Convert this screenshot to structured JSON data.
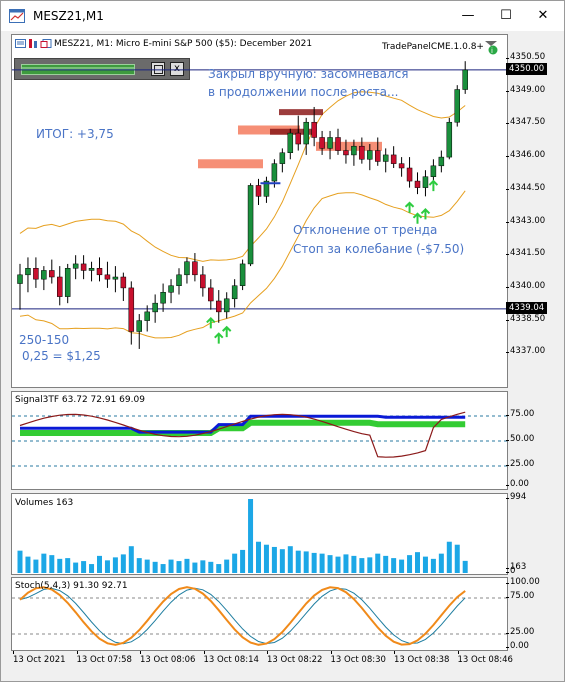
{
  "window": {
    "title": "MESZ21,M1",
    "controls": [
      "minimize-icon",
      "maximize-icon",
      "close-icon"
    ]
  },
  "chart": {
    "header": "MESZ21, M1:  Micro E-mini S&P 500 ($5): December 2021",
    "ea_label": "TradePanelCME.1.0.8+",
    "panel_close": "x",
    "price_scale": [
      "4350.50",
      "4349.00",
      "4347.50",
      "4346.00",
      "4344.50",
      "4343.00",
      "4341.50",
      "4340.00",
      "4338.50",
      "4337.00"
    ],
    "current_price_tag": "4350.00",
    "hline_price_tag": "4339.04",
    "annotations": {
      "closed_note_1": "Закрыл вручную: засомневался",
      "closed_note_2": "в продолжении после роста...",
      "result": "ИТОГ: +3,75",
      "deviation_1": "Отклонение от тренда",
      "deviation_2": "Стоп за колебание (-$7.50)",
      "ticks_1": "250-150",
      "ticks_2": "0,25 = $1,25"
    },
    "colors": {
      "bull": "#1a8f3c",
      "bear": "#c8102e",
      "band": "#e6a020",
      "zone": "#f47b5e",
      "arrow": "#2ecc40",
      "annotation": "#4a74c6"
    }
  },
  "signal_pane": {
    "label": "Signal3TF 63.72 72.91 69.09",
    "scale": [
      "75.00",
      "50.00",
      "25.00",
      "0.00"
    ]
  },
  "volume_pane": {
    "label": "Volumes 163",
    "scale": [
      "994",
      "163",
      "0"
    ]
  },
  "stoch_pane": {
    "label": "Stoch(5,4,3) 91.30 92.71",
    "scale": [
      "100.00",
      "75.00",
      "25.00",
      "0.00"
    ]
  },
  "time_axis": [
    "13 Oct 2021",
    "13 Oct 07:58",
    "13 Oct 08:06",
    "13 Oct 08:14",
    "13 Oct 08:22",
    "13 Oct 08:30",
    "13 Oct 08:38",
    "13 Oct 08:46"
  ]
}
